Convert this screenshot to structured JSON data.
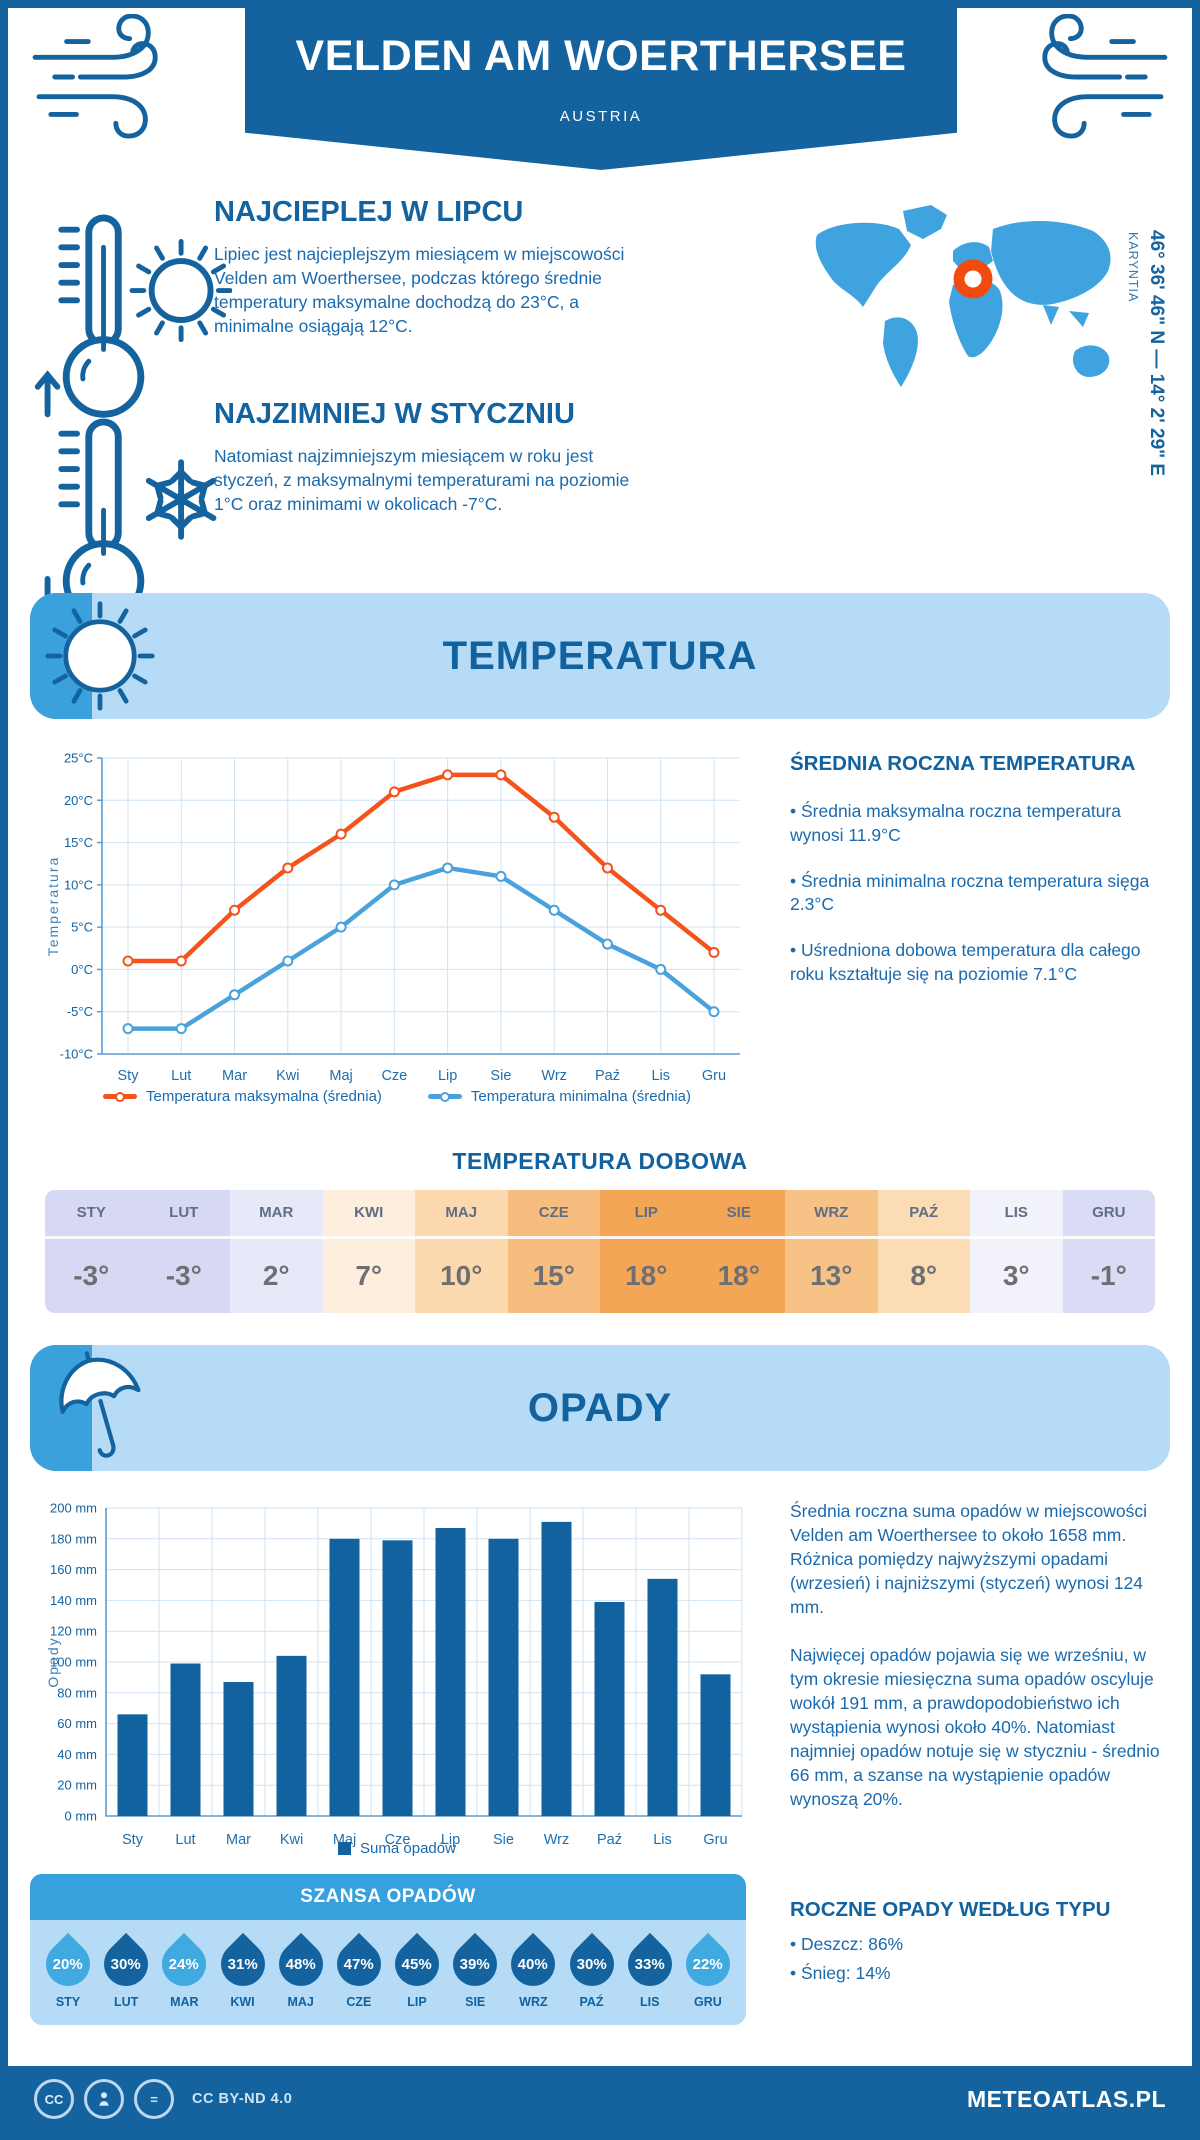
{
  "header": {
    "title": "VELDEN AM WOERTHERSEE",
    "subtitle": "AUSTRIA"
  },
  "highlights": {
    "warm": {
      "title": "NAJCIEPLEJ W LIPCU",
      "text": "Lipiec jest najcieplejszym miesiącem w miejscowości Velden am Woerthersee, podczas którego średnie temperatury maksymalne dochodzą do 23°C, a minimalne osiągają 12°C."
    },
    "cold": {
      "title": "NAJZIMNIEJ W STYCZNIU",
      "text": "Natomiast najzimniejszym miesiącem w roku jest styczeń, z maksymalnymi temperaturami na poziomie 1°C oraz minimami w okolicach -7°C."
    }
  },
  "map": {
    "coordinates": "46° 36' 46\" N — 14° 2' 29\" E",
    "region": "KARYNTIA",
    "marker_color": "#f24b0f",
    "land_color": "#3fa3e0"
  },
  "temperature_section": {
    "title": "TEMPERATURA",
    "stats_title": "ŚREDNIA ROCZNA TEMPERATURA",
    "stats": [
      "• Średnia maksymalna roczna temperatura wynosi 11.9°C",
      "• Średnia minimalna roczna temperatura sięga 2.3°C",
      "• Uśredniona dobowa temperatura dla całego roku kształtuje się na poziomie 7.1°C"
    ],
    "daily_title": "TEMPERATURA DOBOWA",
    "daily": {
      "months": [
        "STY",
        "LUT",
        "MAR",
        "KWI",
        "MAJ",
        "CZE",
        "LIP",
        "SIE",
        "WRZ",
        "PAŹ",
        "LIS",
        "GRU"
      ],
      "values": [
        "-3°",
        "-3°",
        "2°",
        "7°",
        "10°",
        "15°",
        "18°",
        "18°",
        "13°",
        "8°",
        "3°",
        "-1°"
      ],
      "colors": [
        "#d7d8f3",
        "#d7d8f3",
        "#e7e8f8",
        "#fdeedd",
        "#fbd8ae",
        "#f7bd7f",
        "#f3a756",
        "#f3a756",
        "#f7c286",
        "#fbdcb4",
        "#f2f3fa",
        "#dadbf4"
      ]
    }
  },
  "precipitation_section": {
    "title": "OPADY",
    "paragraphs": [
      "Średnia roczna suma opadów w miejscowości Velden am Woerthersee to około 1658 mm. Różnica pomiędzy najwyższymi opadami (wrzesień) i najniższymi (styczeń) wynosi 124 mm.",
      "Najwięcej opadów pojawia się we wrześniu, w tym okresie miesięczna suma opadów oscyluje wokół 191 mm, a prawdopodobieństwo ich wystąpienia wynosi około 40%. Natomiast najmniej opadów notuje się w styczniu - średnio 66 mm, a szanse na wystąpienie opadów wynoszą 20%."
    ],
    "type_title": "ROCZNE OPADY WEDŁUG TYPU",
    "types": [
      "• Deszcz: 86%",
      "• Śnieg: 14%"
    ],
    "chance": {
      "title": "SZANSA OPADÓW",
      "months": [
        "STY",
        "LUT",
        "MAR",
        "KWI",
        "MAJ",
        "CZE",
        "LIP",
        "SIE",
        "WRZ",
        "PAŹ",
        "LIS",
        "GRU"
      ],
      "values": [
        "20%",
        "30%",
        "24%",
        "31%",
        "48%",
        "47%",
        "45%",
        "39%",
        "40%",
        "30%",
        "33%",
        "22%"
      ],
      "light": [
        true,
        false,
        true,
        false,
        false,
        false,
        false,
        false,
        false,
        false,
        false,
        true
      ],
      "drop_dark": "#15639e",
      "drop_light": "#3fa9e0"
    }
  },
  "chart_data": [
    {
      "type": "line",
      "title": "",
      "categories": [
        "Sty",
        "Lut",
        "Mar",
        "Kwi",
        "Maj",
        "Cze",
        "Lip",
        "Sie",
        "Wrz",
        "Paź",
        "Lis",
        "Gru"
      ],
      "series": [
        {
          "name": "Temperatura maksymalna (średnia)",
          "color": "#f4531c",
          "values": [
            1,
            1,
            7,
            12,
            16,
            21,
            23,
            23,
            18,
            12,
            7,
            2
          ]
        },
        {
          "name": "Temperatura minimalna (średnia)",
          "color": "#4aa2dc",
          "values": [
            -7,
            -7,
            -3,
            1,
            5,
            10,
            12,
            11,
            7,
            3,
            0,
            -5
          ]
        }
      ],
      "xlabel": "",
      "ylabel": "Temperatura",
      "ylim": [
        -10,
        25
      ],
      "ytick_step": 5,
      "ytick_suffix": "°C",
      "grid": true,
      "legend_position": "bottom"
    },
    {
      "type": "bar",
      "title": "",
      "categories": [
        "Sty",
        "Lut",
        "Mar",
        "Kwi",
        "Maj",
        "Cze",
        "Lip",
        "Sie",
        "Wrz",
        "Paź",
        "Lis",
        "Gru"
      ],
      "series": [
        {
          "name": "Suma opadów",
          "color": "#11629e",
          "values": [
            66,
            99,
            87,
            104,
            180,
            179,
            187,
            180,
            191,
            139,
            154,
            92
          ]
        }
      ],
      "xlabel": "",
      "ylabel": "Opady",
      "ylim": [
        0,
        200
      ],
      "ytick_step": 20,
      "ytick_suffix": " mm",
      "grid": true,
      "legend_position": "bottom"
    }
  ],
  "footer": {
    "license": "CC BY-ND 4.0",
    "brand": "METEOATLAS.PL"
  }
}
